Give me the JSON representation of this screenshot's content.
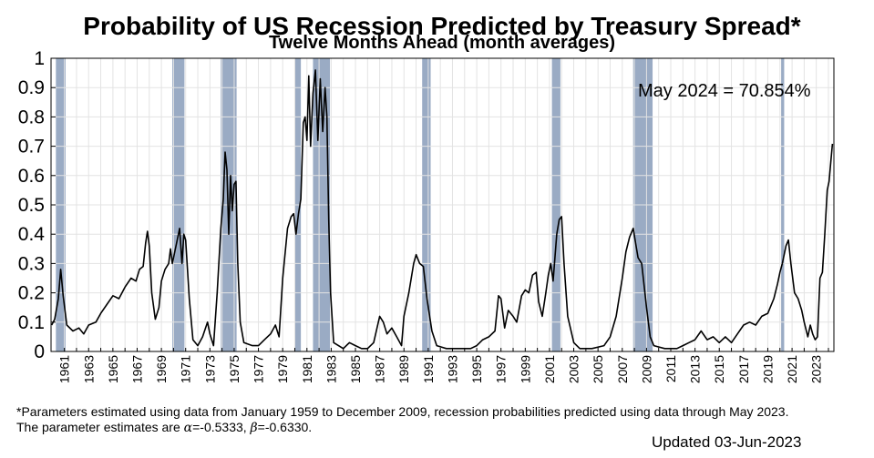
{
  "chart_data": {
    "type": "line",
    "title": "Probability of US Recession Predicted by Treasury Spread*",
    "subtitle": "Twelve Months Ahead (month averages)",
    "annotation": "May 2024 = 70.854%",
    "xlabel": "",
    "ylabel": "",
    "xlim": [
      1959.9,
      2024.45
    ],
    "ylim": [
      0,
      1
    ],
    "grid": true,
    "legend": "none",
    "y_ticks": [
      "0",
      "0.1",
      "0.2",
      "0.3",
      "0.4",
      "0.5",
      "0.6",
      "0.7",
      "0.8",
      "0.9",
      "1"
    ],
    "x_ticks": [
      "1961",
      "1963",
      "1965",
      "1967",
      "1969",
      "1971",
      "1973",
      "1975",
      "1977",
      "1979",
      "1981",
      "1983",
      "1985",
      "1987",
      "1989",
      "1991",
      "1993",
      "1995",
      "1997",
      "1999",
      "2001",
      "2003",
      "2005",
      "2007",
      "2009",
      "2011",
      "2013",
      "2015",
      "2017",
      "2019",
      "2021",
      "2023"
    ],
    "colors": {
      "line": "#000000",
      "recession": "#9aabc4",
      "grid": "#e3e3e3"
    },
    "recession_periods": [
      [
        1960.3,
        1961.1
      ],
      [
        1969.9,
        1970.9
      ],
      [
        1973.9,
        1975.2
      ],
      [
        1980.0,
        1980.5
      ],
      [
        1981.5,
        1982.9
      ],
      [
        1990.5,
        1991.2
      ],
      [
        2001.2,
        2001.9
      ],
      [
        2007.9,
        2009.5
      ],
      [
        2020.1,
        2020.35
      ]
    ],
    "series": [
      {
        "values": [
          [
            1959.95,
            0.09
          ],
          [
            1960.2,
            0.11
          ],
          [
            1960.5,
            0.18
          ],
          [
            1960.7,
            0.28
          ],
          [
            1960.9,
            0.19
          ],
          [
            1961.2,
            0.09
          ],
          [
            1961.7,
            0.07
          ],
          [
            1962.2,
            0.08
          ],
          [
            1962.6,
            0.06
          ],
          [
            1963.0,
            0.09
          ],
          [
            1963.6,
            0.1
          ],
          [
            1964.0,
            0.13
          ],
          [
            1964.5,
            0.16
          ],
          [
            1965.0,
            0.19
          ],
          [
            1965.5,
            0.18
          ],
          [
            1966.0,
            0.22
          ],
          [
            1966.5,
            0.25
          ],
          [
            1966.9,
            0.24
          ],
          [
            1967.2,
            0.28
          ],
          [
            1967.5,
            0.29
          ],
          [
            1967.7,
            0.37
          ],
          [
            1967.85,
            0.41
          ],
          [
            1968.0,
            0.36
          ],
          [
            1968.2,
            0.2
          ],
          [
            1968.5,
            0.11
          ],
          [
            1968.8,
            0.15
          ],
          [
            1969.0,
            0.24
          ],
          [
            1969.3,
            0.28
          ],
          [
            1969.6,
            0.3
          ],
          [
            1969.75,
            0.35
          ],
          [
            1969.9,
            0.3
          ],
          [
            1970.2,
            0.36
          ],
          [
            1970.5,
            0.42
          ],
          [
            1970.7,
            0.3
          ],
          [
            1970.85,
            0.4
          ],
          [
            1971.0,
            0.38
          ],
          [
            1971.3,
            0.18
          ],
          [
            1971.6,
            0.04
          ],
          [
            1972.0,
            0.02
          ],
          [
            1972.4,
            0.05
          ],
          [
            1972.8,
            0.1
          ],
          [
            1973.0,
            0.06
          ],
          [
            1973.3,
            0.02
          ],
          [
            1973.6,
            0.2
          ],
          [
            1973.9,
            0.42
          ],
          [
            1974.1,
            0.52
          ],
          [
            1974.25,
            0.68
          ],
          [
            1974.4,
            0.62
          ],
          [
            1974.55,
            0.4
          ],
          [
            1974.7,
            0.6
          ],
          [
            1974.85,
            0.48
          ],
          [
            1975.0,
            0.57
          ],
          [
            1975.15,
            0.58
          ],
          [
            1975.3,
            0.3
          ],
          [
            1975.5,
            0.1
          ],
          [
            1975.8,
            0.03
          ],
          [
            1976.5,
            0.02
          ],
          [
            1977.0,
            0.02
          ],
          [
            1977.5,
            0.04
          ],
          [
            1978.0,
            0.06
          ],
          [
            1978.4,
            0.09
          ],
          [
            1978.7,
            0.05
          ],
          [
            1979.0,
            0.25
          ],
          [
            1979.4,
            0.42
          ],
          [
            1979.7,
            0.46
          ],
          [
            1979.9,
            0.47
          ],
          [
            1980.1,
            0.4
          ],
          [
            1980.3,
            0.47
          ],
          [
            1980.5,
            0.52
          ],
          [
            1980.7,
            0.78
          ],
          [
            1980.85,
            0.8
          ],
          [
            1981.0,
            0.72
          ],
          [
            1981.15,
            0.94
          ],
          [
            1981.3,
            0.7
          ],
          [
            1981.5,
            0.88
          ],
          [
            1981.7,
            0.96
          ],
          [
            1981.9,
            0.72
          ],
          [
            1982.1,
            0.93
          ],
          [
            1982.3,
            0.75
          ],
          [
            1982.5,
            0.9
          ],
          [
            1982.65,
            0.8
          ],
          [
            1982.8,
            0.45
          ],
          [
            1982.95,
            0.2
          ],
          [
            1983.2,
            0.03
          ],
          [
            1983.6,
            0.02
          ],
          [
            1984.0,
            0.01
          ],
          [
            1984.5,
            0.03
          ],
          [
            1985.0,
            0.02
          ],
          [
            1985.5,
            0.01
          ],
          [
            1986.0,
            0.01
          ],
          [
            1986.5,
            0.03
          ],
          [
            1987.0,
            0.12
          ],
          [
            1987.3,
            0.1
          ],
          [
            1987.6,
            0.06
          ],
          [
            1988.0,
            0.08
          ],
          [
            1988.4,
            0.05
          ],
          [
            1988.8,
            0.02
          ],
          [
            1989.0,
            0.12
          ],
          [
            1989.4,
            0.2
          ],
          [
            1989.8,
            0.3
          ],
          [
            1990.0,
            0.33
          ],
          [
            1990.3,
            0.3
          ],
          [
            1990.6,
            0.29
          ],
          [
            1990.9,
            0.18
          ],
          [
            1991.3,
            0.07
          ],
          [
            1991.7,
            0.02
          ],
          [
            1992.5,
            0.01
          ],
          [
            1993.5,
            0.01
          ],
          [
            1994.5,
            0.01
          ],
          [
            1995.0,
            0.02
          ],
          [
            1995.5,
            0.04
          ],
          [
            1996.0,
            0.05
          ],
          [
            1996.5,
            0.07
          ],
          [
            1996.8,
            0.19
          ],
          [
            1997.0,
            0.18
          ],
          [
            1997.3,
            0.08
          ],
          [
            1997.6,
            0.14
          ],
          [
            1998.0,
            0.12
          ],
          [
            1998.3,
            0.1
          ],
          [
            1998.7,
            0.19
          ],
          [
            1999.0,
            0.21
          ],
          [
            1999.3,
            0.2
          ],
          [
            1999.6,
            0.26
          ],
          [
            1999.9,
            0.27
          ],
          [
            2000.1,
            0.17
          ],
          [
            2000.4,
            0.12
          ],
          [
            2000.7,
            0.2
          ],
          [
            2000.9,
            0.26
          ],
          [
            2001.1,
            0.3
          ],
          [
            2001.3,
            0.24
          ],
          [
            2001.6,
            0.4
          ],
          [
            2001.8,
            0.45
          ],
          [
            2002.0,
            0.46
          ],
          [
            2002.2,
            0.3
          ],
          [
            2002.5,
            0.12
          ],
          [
            2003.0,
            0.03
          ],
          [
            2003.5,
            0.01
          ],
          [
            2004.5,
            0.01
          ],
          [
            2005.5,
            0.02
          ],
          [
            2006.0,
            0.05
          ],
          [
            2006.5,
            0.12
          ],
          [
            2007.0,
            0.25
          ],
          [
            2007.3,
            0.34
          ],
          [
            2007.6,
            0.39
          ],
          [
            2007.9,
            0.42
          ],
          [
            2008.1,
            0.37
          ],
          [
            2008.3,
            0.32
          ],
          [
            2008.6,
            0.3
          ],
          [
            2009.0,
            0.15
          ],
          [
            2009.3,
            0.05
          ],
          [
            2009.6,
            0.02
          ],
          [
            2010.5,
            0.01
          ],
          [
            2011.5,
            0.01
          ],
          [
            2012.0,
            0.02
          ],
          [
            2012.5,
            0.03
          ],
          [
            2013.0,
            0.04
          ],
          [
            2013.5,
            0.07
          ],
          [
            2014.0,
            0.04
          ],
          [
            2014.5,
            0.05
          ],
          [
            2015.0,
            0.03
          ],
          [
            2015.5,
            0.05
          ],
          [
            2016.0,
            0.03
          ],
          [
            2016.5,
            0.06
          ],
          [
            2017.0,
            0.09
          ],
          [
            2017.5,
            0.1
          ],
          [
            2018.0,
            0.09
          ],
          [
            2018.5,
            0.12
          ],
          [
            2019.0,
            0.13
          ],
          [
            2019.5,
            0.18
          ],
          [
            2019.8,
            0.23
          ],
          [
            2020.0,
            0.27
          ],
          [
            2020.2,
            0.3
          ],
          [
            2020.5,
            0.36
          ],
          [
            2020.7,
            0.38
          ],
          [
            2020.9,
            0.3
          ],
          [
            2021.2,
            0.2
          ],
          [
            2021.5,
            0.18
          ],
          [
            2021.8,
            0.14
          ],
          [
            2022.0,
            0.1
          ],
          [
            2022.3,
            0.05
          ],
          [
            2022.5,
            0.09
          ],
          [
            2022.7,
            0.06
          ],
          [
            2022.9,
            0.04
          ],
          [
            2023.1,
            0.05
          ],
          [
            2023.3,
            0.25
          ],
          [
            2023.5,
            0.27
          ],
          [
            2023.7,
            0.4
          ],
          [
            2023.9,
            0.55
          ],
          [
            2024.05,
            0.58
          ],
          [
            2024.2,
            0.65
          ],
          [
            2024.33,
            0.70854
          ]
        ]
      }
    ]
  },
  "footnote": {
    "line1": "*Parameters estimated using data from January 1959 to December 2009, recession probabilities predicted using data through May 2023.",
    "line2_prefix": "The parameter estimates are ",
    "alpha_symbol": "α",
    "alpha_value": "=-0.5333, ",
    "beta_symbol": "β",
    "beta_value": "=-0.6330."
  },
  "updated": "Updated 03-Jun-2023"
}
